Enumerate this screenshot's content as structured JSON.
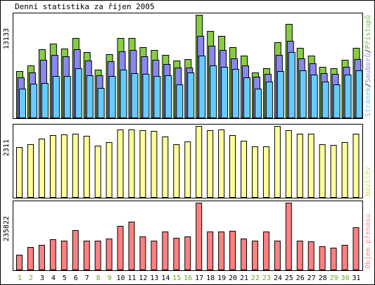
{
  "chart_data": {
    "type": "bar",
    "title": "Denní statistika za říjen 2005",
    "categories": [
      "1",
      "2",
      "3",
      "4",
      "5",
      "6",
      "7",
      "8",
      "9",
      "10",
      "11",
      "12",
      "13",
      "14",
      "15",
      "16",
      "17",
      "18",
      "19",
      "20",
      "21",
      "22",
      "23",
      "24",
      "25",
      "26",
      "27",
      "28",
      "29",
      "30",
      "31"
    ],
    "weekend_days": [
      "1",
      "2",
      "8",
      "9",
      "15",
      "16",
      "22",
      "23",
      "29",
      "30"
    ],
    "panels": [
      {
        "id": "hits",
        "ymax_label": "13133",
        "ymax": 13133,
        "legend": [
          {
            "text": "Stránek",
            "color": "#66ccff"
          },
          {
            "text": "Souborů",
            "color": "#8888ee"
          },
          {
            "text": "Přístupů",
            "color": "#66bb33"
          }
        ],
        "legend_separator": "/",
        "series": [
          {
            "name": "Přístupů",
            "color": "#88cc44",
            "values": [
              5900,
              6700,
              8700,
              9400,
              8800,
              10200,
              8400,
              6100,
              8100,
              10200,
              10200,
              9000,
              8600,
              8000,
              7300,
              7500,
              13133,
              11100,
              10400,
              9000,
              7900,
              5800,
              6300,
              9600,
              12000,
              8900,
              7900,
              6500,
              6300,
              7400,
              8900
            ]
          },
          {
            "name": "Souborů",
            "color": "#8888ee",
            "values": [
              5100,
              5800,
              7400,
              8000,
              7800,
              8700,
              7300,
              5400,
              7200,
              8500,
              8600,
              7800,
              7400,
              6800,
              6400,
              6400,
              10400,
              9200,
              8600,
              7600,
              6700,
              5200,
              5600,
              8000,
              9800,
              7600,
              6900,
              5700,
              5600,
              6500,
              7500
            ]
          },
          {
            "name": "Stránek",
            "color": "#66ccff",
            "values": [
              3700,
              4300,
              4400,
              5300,
              5300,
              6300,
              5400,
              3800,
              5300,
              6100,
              5700,
              5600,
              5300,
              5400,
              4200,
              5800,
              7900,
              6700,
              6500,
              6200,
              5100,
              3700,
              4600,
              5900,
              8400,
              6000,
              5500,
              4600,
              4200,
              5500,
              6000
            ]
          }
        ]
      },
      {
        "id": "visits",
        "ymax_label": "2311",
        "ymax": 2311,
        "legend": [
          {
            "text": "Návštěv",
            "color": "#dddd55"
          }
        ],
        "series": [
          {
            "name": "Návštěv",
            "color": "#ffff99",
            "values": [
              1620,
              1720,
              1900,
              2010,
              2040,
              2070,
              1980,
              1680,
              1780,
              2200,
              2200,
              2180,
              2160,
              1960,
              1710,
              1800,
              2311,
              2180,
              2190,
              2020,
              1830,
              1640,
              1650,
              2311,
              2180,
              2060,
              2050,
              1710,
              1690,
              1780,
              2050
            ]
          }
        ]
      },
      {
        "id": "volume",
        "ymax_label": "235822",
        "ymax": 235822,
        "legend": [
          {
            "text": "Objem přenosu",
            "color": "#ff8888"
          }
        ],
        "series": [
          {
            "name": "Objem přenosu",
            "color": "#ff8080",
            "values": [
              53000,
              80000,
              87000,
              107000,
              103000,
              139000,
              102000,
              102000,
              108000,
              155000,
              169000,
              116000,
              102000,
              135000,
              112000,
              117000,
              235822,
              133000,
              134000,
              136000,
              109000,
              102000,
              133000,
              103000,
              235822,
              103000,
              100000,
              82000,
              76000,
              87000,
              148000
            ]
          }
        ]
      }
    ]
  }
}
